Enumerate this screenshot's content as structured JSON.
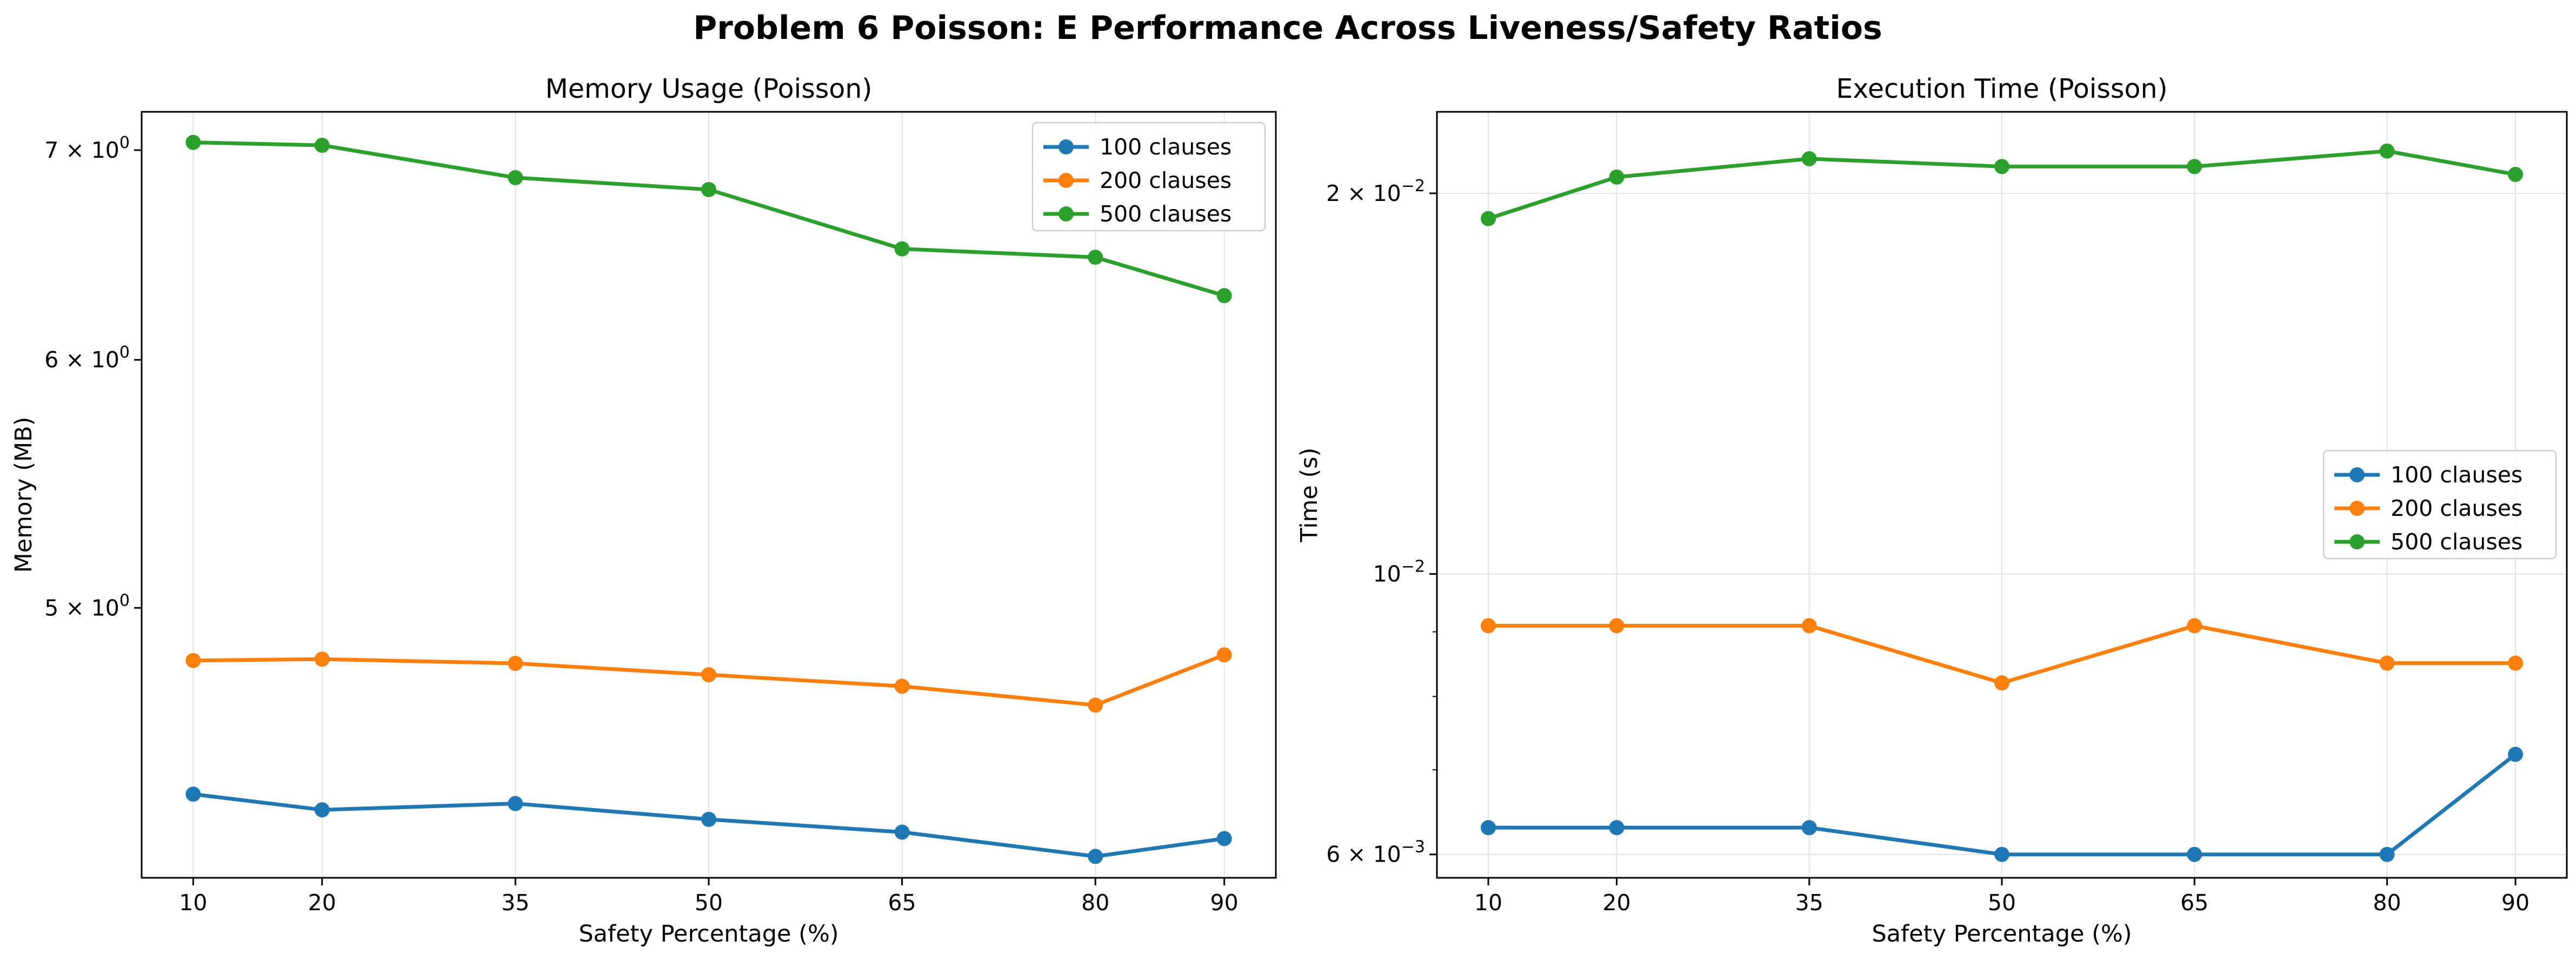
{
  "figure": {
    "title": "Problem 6 Poisson: E Performance Across Liveness/Safety Ratios"
  },
  "colors": {
    "100 clauses": "#1f77b4",
    "200 clauses": "#ff7f0e",
    "500 clauses": "#2ca02c",
    "grid": "#e3e3e3",
    "axes": "#000000"
  },
  "chart_data": [
    {
      "type": "line",
      "title": "Memory Usage (Poisson)",
      "xlabel": "Safety Percentage (%)",
      "ylabel": "Memory (MB)",
      "x": [
        10,
        20,
        35,
        50,
        65,
        80,
        90
      ],
      "xticks": [
        "10",
        "20",
        "35",
        "50",
        "65",
        "80",
        "90"
      ],
      "yscale": "log",
      "ylim": [
        4.1,
        7.2
      ],
      "yticks": [
        {
          "value": 5,
          "base": "5",
          "pre": " × 10",
          "exp": "0"
        },
        {
          "value": 6,
          "base": "6",
          "pre": " × 10",
          "exp": "0"
        },
        {
          "value": 7,
          "base": "7",
          "pre": " × 10",
          "exp": "0"
        }
      ],
      "minor_yticks": [],
      "grid": "x-only",
      "legend_position": "upper right",
      "series": [
        {
          "name": "100 clauses",
          "values": [
            4.36,
            4.31,
            4.33,
            4.28,
            4.24,
            4.165,
            4.22
          ]
        },
        {
          "name": "200 clauses",
          "values": [
            4.81,
            4.815,
            4.8,
            4.76,
            4.72,
            4.655,
            4.83
          ]
        },
        {
          "name": "500 clauses",
          "values": [
            7.04,
            7.025,
            6.86,
            6.8,
            6.51,
            6.47,
            6.29
          ]
        }
      ]
    },
    {
      "type": "line",
      "title": "Execution Time (Poisson)",
      "xlabel": "Safety Percentage (%)",
      "ylabel": "Time (s)",
      "x": [
        10,
        20,
        35,
        50,
        65,
        80,
        90
      ],
      "xticks": [
        "10",
        "20",
        "35",
        "50",
        "65",
        "80",
        "90"
      ],
      "yscale": "log",
      "ylim": [
        0.00575,
        0.0232
      ],
      "yticks": [
        {
          "value": 0.006,
          "base": "6",
          "pre": " × 10",
          "exp": "−3"
        },
        {
          "value": 0.01,
          "base": "",
          "pre": "10",
          "exp": "−2"
        },
        {
          "value": 0.02,
          "base": "2",
          "pre": " × 10",
          "exp": "−2"
        }
      ],
      "minor_yticks": [
        0.007,
        0.008,
        0.009
      ],
      "grid": "both",
      "legend_position": "center right",
      "series": [
        {
          "name": "100 clauses",
          "values": [
            0.0063,
            0.0063,
            0.0063,
            0.006,
            0.006,
            0.006,
            0.0072
          ]
        },
        {
          "name": "200 clauses",
          "values": [
            0.0091,
            0.0091,
            0.0091,
            0.0082,
            0.0091,
            0.0085,
            0.0085
          ]
        },
        {
          "name": "500 clauses",
          "values": [
            0.0191,
            0.0206,
            0.0213,
            0.021,
            0.021,
            0.0216,
            0.0207
          ]
        }
      ]
    }
  ]
}
